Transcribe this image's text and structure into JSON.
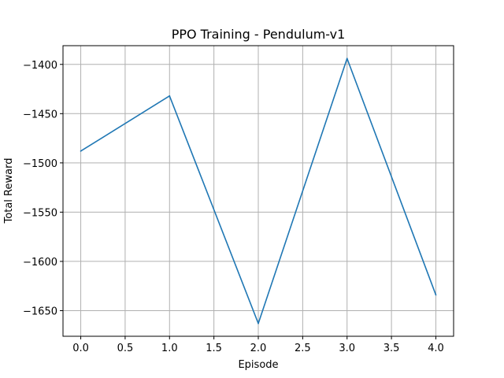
{
  "chart_data": {
    "type": "line",
    "title": "PPO Training - Pendulum-v1",
    "xlabel": "Episode",
    "ylabel": "Total Reward",
    "x": [
      0,
      1,
      2,
      3,
      4
    ],
    "series": [
      {
        "values": [
          -1488,
          -1432,
          -1663,
          -1394,
          -1634
        ],
        "color": "#1f77b4"
      }
    ],
    "xlim": [
      -0.2,
      4.2
    ],
    "ylim": [
      -1676,
      -1381
    ],
    "xticks": [
      0.0,
      0.5,
      1.0,
      1.5,
      2.0,
      2.5,
      3.0,
      3.5,
      4.0
    ],
    "xtick_labels": [
      "0.0",
      "0.5",
      "1.0",
      "1.5",
      "2.0",
      "2.5",
      "3.0",
      "3.5",
      "4.0"
    ],
    "yticks": [
      -1400,
      -1450,
      -1500,
      -1550,
      -1600,
      -1650
    ],
    "ytick_labels": [
      "−1400",
      "−1450",
      "−1500",
      "−1550",
      "−1600",
      "−1650"
    ],
    "grid": true,
    "grid_color": "#b0b0b0"
  }
}
